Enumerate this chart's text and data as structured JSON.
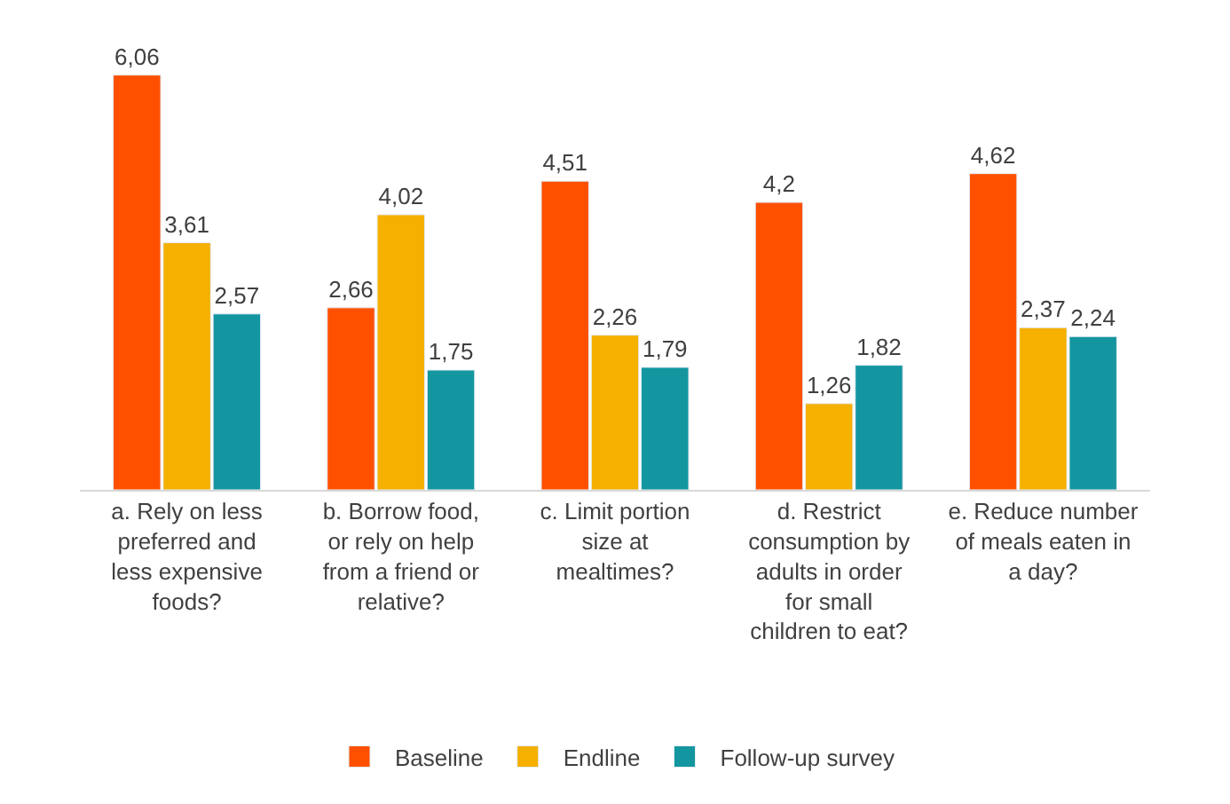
{
  "chart_data": {
    "type": "bar",
    "categories": [
      "a. Rely on less preferred and less expensive foods?",
      "b. Borrow food, or rely on help from a friend or relative?",
      "c. Limit portion size at mealtimes?",
      "d. Restrict consumption by adults in order for small children to eat?",
      "e. Reduce number of meals eaten in a day?"
    ],
    "series": [
      {
        "name": "Baseline",
        "color": "#ff5000",
        "values": [
          6.06,
          2.66,
          4.51,
          4.2,
          4.62
        ],
        "value_labels": [
          "6,06",
          "2,66",
          "4,51",
          "4,2",
          "4,62"
        ]
      },
      {
        "name": "Endline",
        "color": "#f5b000",
        "values": [
          3.61,
          4.02,
          2.26,
          1.26,
          2.37
        ],
        "value_labels": [
          "3,61",
          "4,02",
          "2,26",
          "1,26",
          "2,37"
        ]
      },
      {
        "name": "Follow-up survey",
        "color": "#13969f",
        "values": [
          2.57,
          1.75,
          1.79,
          1.82,
          2.24
        ],
        "value_labels": [
          "2,57",
          "1,75",
          "1,79",
          "1,82",
          "2,24"
        ]
      }
    ],
    "legend": "bottom"
  }
}
